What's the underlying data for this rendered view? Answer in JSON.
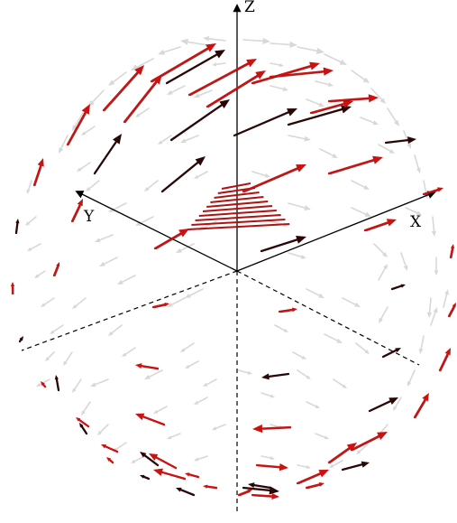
{
  "axes": {
    "z_label": "Z",
    "y_label": "Y",
    "x_label": "X"
  },
  "colors": {
    "axis": "#000000",
    "arrow_light": "#d8d8d8",
    "arrow_red": "#cc1111",
    "arrow_dark": "#2a0707",
    "plane": "#b01212"
  }
}
